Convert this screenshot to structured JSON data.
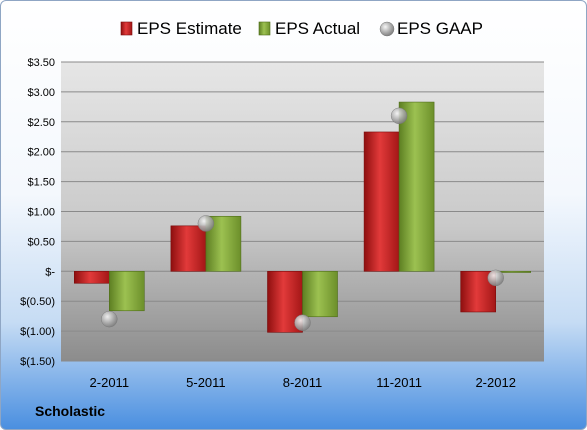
{
  "company": "Scholastic",
  "chart_data": {
    "type": "bar",
    "categories": [
      "2-2011",
      "5-2011",
      "8-2011",
      "11-2011",
      "2-2012"
    ],
    "series": [
      {
        "name": "EPS Estimate",
        "kind": "bar",
        "color": "#d42a2a",
        "values": [
          -0.2,
          0.76,
          -1.02,
          2.33,
          -0.68
        ]
      },
      {
        "name": "EPS Actual",
        "kind": "bar",
        "color": "#8bb041",
        "values": [
          -0.66,
          0.92,
          -0.76,
          2.83,
          -0.02
        ]
      },
      {
        "name": "EPS GAAP",
        "kind": "marker",
        "color": "#a0a0a0",
        "values": [
          -0.8,
          0.8,
          -0.86,
          2.6,
          -0.11
        ]
      }
    ],
    "ylim": [
      -1.5,
      3.5
    ],
    "yticks": [
      3.5,
      3.0,
      2.5,
      2.0,
      1.5,
      1.0,
      0.5,
      0,
      -0.5,
      -1.0,
      -1.5
    ],
    "ytick_labels": [
      "$3.50",
      "$3.00",
      "$2.50",
      "$2.00",
      "$1.50",
      "$1.00",
      "$0.50",
      "$-",
      "$(0.50)",
      "$(1.00)",
      "$(1.50)"
    ],
    "grid": true,
    "legend_position": "top"
  }
}
